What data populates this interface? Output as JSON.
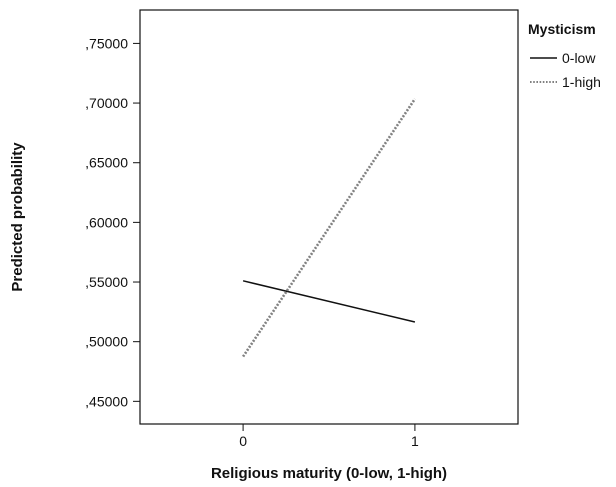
{
  "chart_data": {
    "type": "line",
    "title": "",
    "xlabel": "Religious maturity (0-low, 1-high)",
    "ylabel": "Predicted probability",
    "x": [
      0,
      1
    ],
    "x_ticks": [
      0,
      1
    ],
    "x_tick_labels": [
      "0",
      "1"
    ],
    "xlim": [
      -0.6,
      1.6
    ],
    "y_ticks": [
      0.45,
      0.5,
      0.55,
      0.6,
      0.65,
      0.7,
      0.75
    ],
    "y_tick_labels": [
      ",45000",
      ",50000",
      ",55000",
      ",60000",
      ",65000",
      ",70000",
      ",75000"
    ],
    "ylim": [
      0.431,
      0.778
    ],
    "grid": false,
    "legend": {
      "title": "Mysticism",
      "placement": "right-top"
    },
    "series": [
      {
        "name": "0-low",
        "values": [
          0.551,
          0.5165
        ],
        "style": "solid",
        "color": "#111111"
      },
      {
        "name": "1-high",
        "values": [
          0.4875,
          0.7035
        ],
        "style": "dotted",
        "color": "#808080"
      }
    ]
  }
}
